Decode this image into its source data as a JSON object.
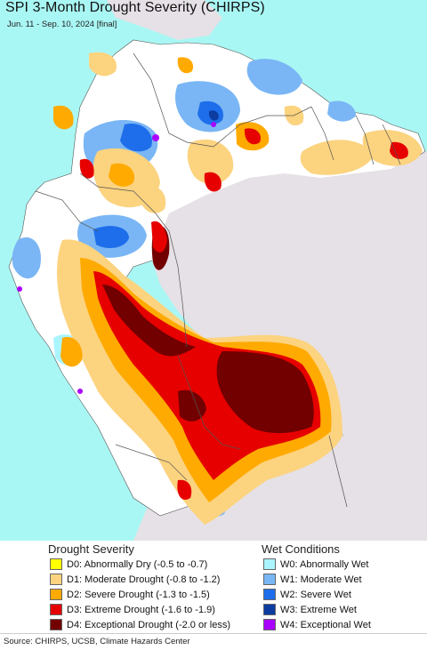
{
  "title": "SPI 3-Month Drought Severity (CHIRPS)",
  "subtitle": "Jun. 11 - Sep. 10, 2024 [final]",
  "colors": {
    "ocean": "#a9f7f4",
    "outside_land": "#e6e1e6",
    "normal_land": "#ffffff",
    "borders": "#555555"
  },
  "legend": {
    "drought_header": "Drought Severity",
    "wet_header": "Wet Conditions",
    "drought": [
      {
        "label": "D0: Abnormally Dry (-0.5 to -0.7)",
        "color": "#ffff00"
      },
      {
        "label": "D1: Moderate Drought (-0.8 to -1.2)",
        "color": "#fcd37f"
      },
      {
        "label": "D2: Severe Drought (-1.3 to -1.5)",
        "color": "#ffaa00"
      },
      {
        "label": "D3: Extreme Drought (-1.6 to -1.9)",
        "color": "#e60000"
      },
      {
        "label": "D4: Exceptional Drought (-2.0 or less)",
        "color": "#730000"
      }
    ],
    "wet": [
      {
        "label": "W0: Abnormally Wet",
        "color": "#aaf5ff"
      },
      {
        "label": "W1: Moderate Wet",
        "color": "#7ab6f5"
      },
      {
        "label": "W2: Severe Wet",
        "color": "#1e6eeb"
      },
      {
        "label": "W3: Extreme Wet",
        "color": "#0c3ca0"
      },
      {
        "label": "W4: Exceptional Wet",
        "color": "#aa00ff"
      }
    ]
  },
  "footer": "Source: CHIRPS, UCSB, Climate Hazards Center"
}
